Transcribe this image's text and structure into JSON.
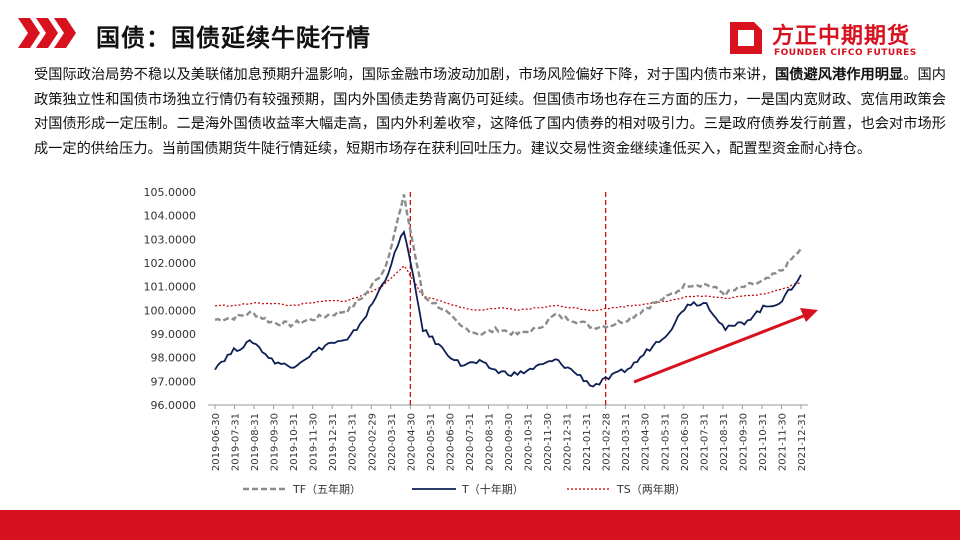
{
  "header": {
    "title": "国债：国债延续牛陡行情",
    "logo_cn": "方正中期期货",
    "logo_en": "FOUNDER CIFCO FUTURES"
  },
  "paragraph": {
    "part1": "受国际政治局势不稳以及美联储加息预期升温影响，国际金融市场波动加剧，市场风险偏好下降，对于国内债市来讲，",
    "bold": "国债避风港作用明显",
    "part2": "。国内政策独立性和国债市场独立行情仍有较强预期，国内外国债走势背离仍可延续。但国债市场也存在三方面的压力，一是国内宽财政、宽信用政策会对国债形成一定压制。二是海外国债收益率大幅走高，国内外利差收窄，这降低了国内债券的相对吸引力。三是政府债券发行前置，也会对市场形成一定的供给压力。当前国债期货牛陡行情延续，短期市场存在获利回吐压力。建议交易性资金继续逢低买入，配置型资金耐心持仓。"
  },
  "colors": {
    "brand_red": "#d7111e",
    "tf": "#8c8c8c",
    "t": "#0d1f55",
    "ts": "#c00000",
    "arrow": "#d7111e"
  },
  "chart_data": {
    "type": "line",
    "ylim": [
      96.0,
      105.0
    ],
    "y_ticks": [
      "96.0000",
      "97.0000",
      "98.0000",
      "99.0000",
      "100.0000",
      "101.0000",
      "102.0000",
      "103.0000",
      "104.0000",
      "105.0000"
    ],
    "x_ticks": [
      "2019-06-30",
      "2019-07-31",
      "2019-08-31",
      "2019-09-30",
      "2019-10-31",
      "2019-11-30",
      "2019-12-31",
      "2020-01-31",
      "2020-02-29",
      "2020-03-31",
      "2020-04-30",
      "2020-05-31",
      "2020-06-30",
      "2020-07-31",
      "2020-08-31",
      "2020-09-30",
      "2020-10-31",
      "2020-11-30",
      "2020-12-31",
      "2021-01-31",
      "2021-02-28",
      "2021-03-31",
      "2021-04-30",
      "2021-05-31",
      "2021-06-30",
      "2021-07-31",
      "2021-08-31",
      "2021-09-30",
      "2021-10-31",
      "2021-11-30",
      "2021-12-31"
    ],
    "vlines": [
      "2020-04-30",
      "2021-02-28"
    ],
    "series": [
      {
        "name": "TF（五年期）",
        "style": "dashed",
        "values": [
          99.6,
          99.7,
          99.9,
          99.5,
          99.4,
          99.6,
          99.8,
          100.0,
          100.7,
          101.8,
          104.8,
          100.6,
          100.1,
          99.3,
          99.0,
          99.2,
          99.0,
          99.2,
          99.8,
          99.6,
          99.3,
          99.4,
          99.7,
          100.2,
          100.6,
          101.1,
          101.1,
          100.7,
          101.0,
          101.2,
          101.7,
          102.6
        ]
      },
      {
        "name": "T（十年期）",
        "style": "solid",
        "values": [
          97.6,
          98.3,
          98.7,
          97.9,
          97.6,
          98.1,
          98.6,
          98.7,
          99.8,
          101.3,
          103.4,
          99.2,
          98.4,
          97.7,
          97.8,
          97.4,
          97.3,
          97.6,
          97.9,
          97.4,
          96.8,
          97.2,
          97.6,
          98.4,
          99.1,
          100.3,
          100.3,
          99.2,
          99.5,
          100.1,
          100.4,
          101.5
        ]
      },
      {
        "name": "TS（两年期）",
        "style": "dotted",
        "values": [
          100.2,
          100.2,
          100.3,
          100.3,
          100.2,
          100.3,
          100.4,
          100.4,
          100.7,
          101.1,
          101.9,
          100.6,
          100.4,
          100.1,
          100.0,
          100.1,
          100.0,
          100.1,
          100.2,
          100.1,
          100.0,
          100.1,
          100.2,
          100.3,
          100.4,
          100.6,
          100.6,
          100.5,
          100.6,
          100.7,
          100.9,
          101.2
        ]
      }
    ],
    "legend_position": "bottom"
  }
}
